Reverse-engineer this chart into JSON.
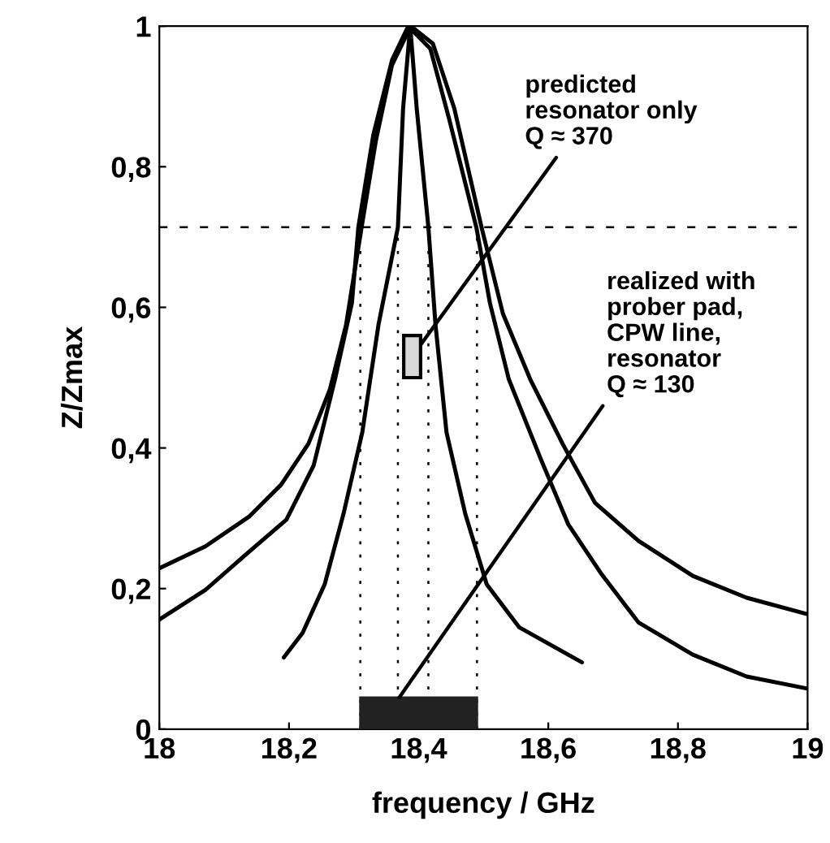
{
  "chart_data": {
    "type": "line",
    "xlabel": "frequency / GHz",
    "ylabel": "Z/Zmax",
    "xlim": [
      18,
      19
    ],
    "ylim": [
      0,
      1
    ],
    "xticks": [
      18,
      {
        "value": 18.2,
        "label": "18,2"
      },
      {
        "value": 18.4,
        "label": "18,4"
      },
      {
        "value": 18.6,
        "label": "18,6"
      },
      {
        "value": 18.8,
        "label": "18,8"
      },
      19
    ],
    "yticks": [
      0,
      {
        "value": 0.2,
        "label": "0,2"
      },
      {
        "value": 0.4,
        "label": "0,4"
      },
      {
        "value": 0.6,
        "label": "0,6"
      },
      {
        "value": 0.8,
        "label": "0,8"
      },
      1
    ],
    "grid": false,
    "marker": "none",
    "line_style": "solid",
    "series": [
      {
        "color": "#000000",
        "x": [
          18.0,
          18.071,
          18.138,
          18.188,
          18.23,
          18.263,
          18.288,
          18.312,
          18.334,
          18.359,
          18.388,
          18.422,
          18.455,
          18.497,
          18.53,
          18.572,
          18.622,
          18.672,
          18.739,
          18.823,
          18.906,
          18.998
        ],
        "values": [
          0.229,
          0.26,
          0.302,
          0.348,
          0.406,
          0.483,
          0.575,
          0.714,
          0.837,
          0.945,
          1.0,
          0.975,
          0.883,
          0.714,
          0.591,
          0.498,
          0.406,
          0.322,
          0.268,
          0.218,
          0.187,
          0.164
        ]
      },
      {
        "color": "#000000",
        "x": [
          18.0,
          18.071,
          18.138,
          18.196,
          18.238,
          18.271,
          18.297,
          18.307,
          18.33,
          18.359,
          18.384,
          18.418,
          18.447,
          18.489,
          18.51,
          18.539,
          18.589,
          18.631,
          18.681,
          18.739,
          18.823,
          18.906,
          18.998
        ],
        "values": [
          0.156,
          0.198,
          0.252,
          0.298,
          0.375,
          0.498,
          0.606,
          0.714,
          0.845,
          0.952,
          1.0,
          0.968,
          0.868,
          0.714,
          0.606,
          0.498,
          0.383,
          0.291,
          0.222,
          0.152,
          0.106,
          0.075,
          0.058
        ]
      },
      {
        "color": "#000000",
        "x": [
          18.192,
          18.221,
          18.255,
          18.284,
          18.313,
          18.338,
          18.368,
          18.376,
          18.387,
          18.397,
          18.415,
          18.426,
          18.443,
          18.472,
          18.505,
          18.555,
          18.652
        ],
        "values": [
          0.102,
          0.137,
          0.206,
          0.306,
          0.422,
          0.575,
          0.714,
          0.883,
          1.0,
          0.883,
          0.714,
          0.575,
          0.422,
          0.306,
          0.206,
          0.145,
          0.095
        ]
      }
    ],
    "bands": [
      {
        "axis": "x",
        "from": 18.31,
        "to": 18.49,
        "color": "#222222"
      }
    ],
    "ref_lines": [
      {
        "axis": "y",
        "value": 0.714,
        "line_style": "dashed",
        "color": "#000000"
      },
      {
        "axis": "x",
        "value": 18.31,
        "line_style": "dotted",
        "color": "#000000"
      },
      {
        "axis": "x",
        "value": 18.368,
        "line_style": "dotted",
        "color": "#000000"
      },
      {
        "axis": "x",
        "value": 18.415,
        "line_style": "dotted",
        "color": "#000000"
      },
      {
        "axis": "x",
        "value": 18.49,
        "line_style": "dotted",
        "color": "#000000"
      }
    ],
    "annotations": [
      {
        "text": "predicted\nresonator only\nQ ≈ 370",
        "x": 18.39,
        "y": 0.53
      },
      {
        "text": "realized with\nprober pad,\nCPW line,\nresonator\nQ ≈ 130",
        "x": 18.37,
        "y": 0.045
      }
    ]
  }
}
